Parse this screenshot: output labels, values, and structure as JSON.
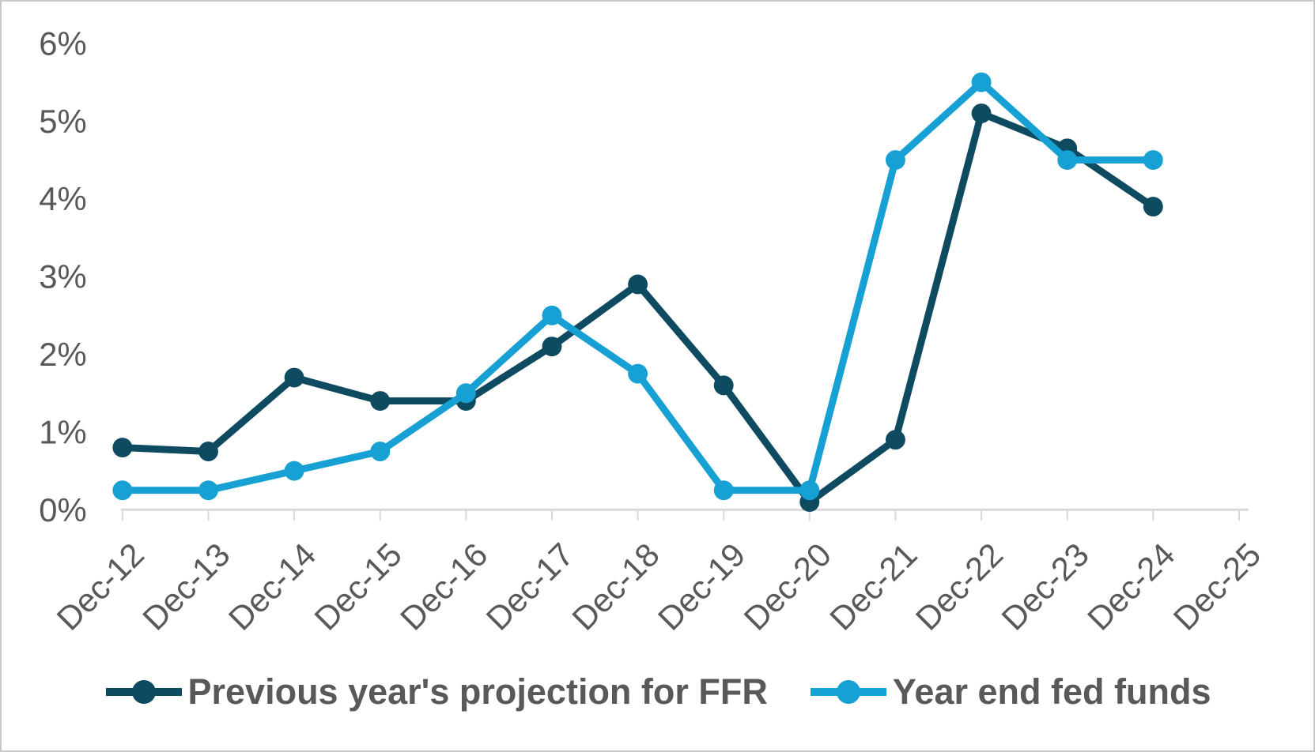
{
  "chart_data": {
    "type": "line",
    "title": "",
    "categories": [
      "Dec-12",
      "Dec-13",
      "Dec-14",
      "Dec-15",
      "Dec-16",
      "Dec-17",
      "Dec-18",
      "Dec-19",
      "Dec-20",
      "Dec-21",
      "Dec-22",
      "Dec-23",
      "Dec-24",
      "Dec-25"
    ],
    "series": [
      {
        "name": "Previous year's projection for FFR",
        "color": "#0F4B60",
        "values": [
          0.8,
          0.75,
          1.7,
          1.4,
          1.4,
          2.1,
          2.9,
          1.6,
          0.1,
          0.9,
          5.1,
          4.65,
          3.9,
          null
        ]
      },
      {
        "name": "Year end fed funds",
        "color": "#17A0D3",
        "values": [
          0.25,
          0.25,
          0.5,
          0.75,
          1.5,
          2.5,
          1.75,
          0.25,
          0.25,
          4.5,
          5.5,
          4.5,
          4.5,
          null
        ]
      }
    ],
    "xlabel": "",
    "ylabel": "",
    "y_ticks": [
      "0%",
      "1%",
      "2%",
      "3%",
      "4%",
      "5%",
      "6%"
    ],
    "ylim": [
      0,
      6
    ],
    "grid": false,
    "legend_position": "bottom",
    "marker": "circle",
    "x_label_rotation_deg": -45
  },
  "colors": {
    "axis": "#D9D9D9",
    "text": "#595959",
    "background": "#FFFFFF",
    "frame_border": "#C9C9C9"
  }
}
